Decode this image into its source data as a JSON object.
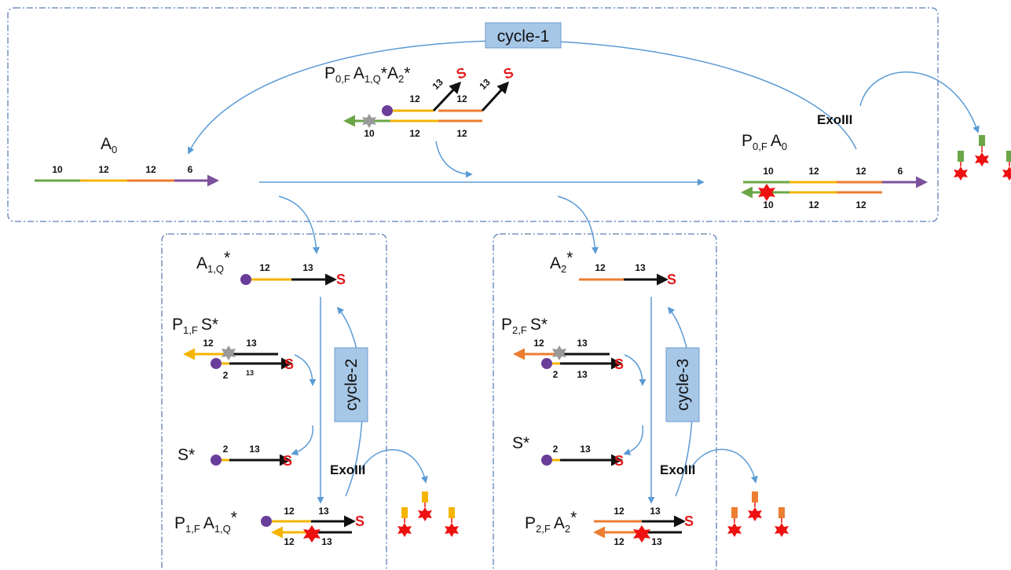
{
  "colors": {
    "green": "#6ba547",
    "yellow": "#f5b400",
    "orange": "#ed7d31",
    "purple": "#7b519d",
    "black": "#111111",
    "flow_blue": "#5b9bd5",
    "cycle_box_fill": "#a7c7e7",
    "fluor_red": "#ee1111",
    "quencher_purple": "#6a3d9a",
    "quencher_gray": "#999999"
  },
  "cycles": {
    "cycle1": "cycle-1",
    "cycle2": "cycle-2",
    "cycle3": "cycle-3"
  },
  "enzyme": "ExoIII",
  "signal_label": "S",
  "labels": {
    "A0": {
      "main": "A",
      "sub": "0"
    },
    "P0F_A1Q_A2": {
      "p": "P",
      "p_sub": "0,F",
      "a1": "A",
      "a1_sub": "1,Q",
      "a1_star": "*",
      "a2": "A",
      "a2_sub": "2",
      "a2_star": "*"
    },
    "P0F_A0": {
      "p": "P",
      "p_sub": "0,F",
      "a": "A",
      "a_sub": "0"
    },
    "A1Q": {
      "main": "A",
      "sub": "1,Q",
      "star": "*"
    },
    "P1F_S": {
      "p": "P",
      "p_sub": "1,F",
      "s": "S*"
    },
    "S_left": "S*",
    "P1F_A1Q": {
      "p": "P",
      "p_sub": "1,F",
      "a": "A",
      "a_sub": "1,Q",
      "star": "*"
    },
    "A2": {
      "main": "A",
      "sub": "2",
      "star": "*"
    },
    "P2F_S": {
      "p": "P",
      "p_sub": "2,F",
      "s": "S*"
    },
    "S_right": "S*",
    "P2F_A2": {
      "p": "P",
      "p_sub": "2,F",
      "a": "A",
      "a_sub": "2",
      "star": "*"
    }
  },
  "segment_lengths": {
    "a0": [
      "10",
      "12",
      "12",
      "6"
    ],
    "complex_top": [
      "12",
      "13",
      "12",
      "13"
    ],
    "complex_bottom": [
      "10",
      "12",
      "12"
    ],
    "p0_top": [
      "10",
      "12",
      "12",
      "6"
    ],
    "p0_bottom": [
      "10",
      "12",
      "12"
    ],
    "a1q": [
      "12",
      "13"
    ],
    "p1s_top": [
      "12",
      "13"
    ],
    "p1s_bottom": [
      "2",
      "13"
    ],
    "s_left": [
      "2",
      "13"
    ],
    "p1a_top": [
      "12",
      "13"
    ],
    "p1a_bottom": [
      "12",
      "13"
    ],
    "a2": [
      "12",
      "13"
    ],
    "p2s_top": [
      "12",
      "13"
    ],
    "p2s_bottom": [
      "2",
      "13"
    ],
    "s_right": [
      "2",
      "13"
    ],
    "p2a_top": [
      "12",
      "13"
    ],
    "p2a_bottom": [
      "12",
      "13"
    ]
  }
}
